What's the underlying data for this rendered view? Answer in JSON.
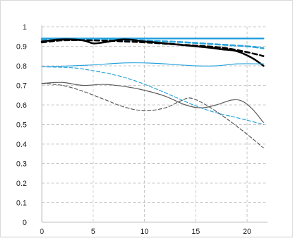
{
  "chart_data": {
    "type": "line",
    "title": "",
    "xlabel": "",
    "ylabel": "",
    "xlim": [
      0,
      22
    ],
    "ylim": [
      0,
      1
    ],
    "x_ticks": [
      0,
      5,
      10,
      15,
      20
    ],
    "y_ticks": [
      0,
      0.1,
      0.2,
      0.3,
      0.4,
      0.5,
      0.6,
      0.7,
      0.8,
      0.9,
      1
    ],
    "grid": "dashed",
    "legend": "none",
    "series": [
      {
        "color": "#29a3dc",
        "style": "solid",
        "weight": "bold",
        "points": [
          [
            0,
            0.94
          ],
          [
            5,
            0.94
          ],
          [
            10,
            0.94
          ],
          [
            15,
            0.94
          ],
          [
            20,
            0.94
          ],
          [
            21.6,
            0.94
          ]
        ]
      },
      {
        "color": "#29a3dc",
        "style": "dashed",
        "weight": "bold",
        "points": [
          [
            0,
            0.935
          ],
          [
            5,
            0.935
          ],
          [
            10,
            0.93
          ],
          [
            14,
            0.92
          ],
          [
            17,
            0.91
          ],
          [
            20,
            0.9
          ],
          [
            21.6,
            0.89
          ]
        ]
      },
      {
        "color": "#000000",
        "style": "solid",
        "weight": "bold",
        "points": [
          [
            0,
            0.925
          ],
          [
            2,
            0.935
          ],
          [
            4,
            0.93
          ],
          [
            5,
            0.915
          ],
          [
            6,
            0.92
          ],
          [
            8,
            0.935
          ],
          [
            10,
            0.925
          ],
          [
            12,
            0.915
          ],
          [
            14,
            0.905
          ],
          [
            16,
            0.895
          ],
          [
            17.5,
            0.885
          ],
          [
            19,
            0.875
          ],
          [
            20.5,
            0.84
          ],
          [
            21.6,
            0.8
          ]
        ]
      },
      {
        "color": "#000000",
        "style": "dashed",
        "weight": "bold",
        "points": [
          [
            0,
            0.92
          ],
          [
            2,
            0.93
          ],
          [
            5,
            0.93
          ],
          [
            8,
            0.925
          ],
          [
            10,
            0.92
          ],
          [
            13,
            0.91
          ],
          [
            16,
            0.9
          ],
          [
            18,
            0.89
          ],
          [
            20,
            0.87
          ],
          [
            21.6,
            0.85
          ]
        ]
      },
      {
        "color": "#29a3dc",
        "style": "solid",
        "weight": "thin",
        "points": [
          [
            0,
            0.795
          ],
          [
            3,
            0.8
          ],
          [
            5,
            0.805
          ],
          [
            8,
            0.815
          ],
          [
            10,
            0.815
          ],
          [
            12,
            0.81
          ],
          [
            15,
            0.8
          ],
          [
            17,
            0.8
          ],
          [
            19,
            0.81
          ],
          [
            21.6,
            0.81
          ]
        ]
      },
      {
        "color": "#29a3dc",
        "style": "dashed",
        "weight": "thin",
        "points": [
          [
            0,
            0.795
          ],
          [
            3,
            0.79
          ],
          [
            5,
            0.775
          ],
          [
            7,
            0.755
          ],
          [
            9,
            0.725
          ],
          [
            11,
            0.685
          ],
          [
            13,
            0.64
          ],
          [
            15,
            0.595
          ],
          [
            17,
            0.56
          ],
          [
            19,
            0.535
          ],
          [
            21.6,
            0.5
          ]
        ]
      },
      {
        "color": "#595959",
        "style": "solid",
        "weight": "thin",
        "points": [
          [
            0,
            0.71
          ],
          [
            2,
            0.715
          ],
          [
            4,
            0.7
          ],
          [
            6,
            0.705
          ],
          [
            8,
            0.695
          ],
          [
            10,
            0.675
          ],
          [
            12,
            0.645
          ],
          [
            14,
            0.6
          ],
          [
            15.5,
            0.585
          ],
          [
            17,
            0.6
          ],
          [
            18.5,
            0.625
          ],
          [
            19.5,
            0.62
          ],
          [
            20.5,
            0.58
          ],
          [
            21.6,
            0.51
          ]
        ]
      },
      {
        "color": "#595959",
        "style": "dashed",
        "weight": "thin",
        "points": [
          [
            0,
            0.71
          ],
          [
            2,
            0.7
          ],
          [
            4,
            0.67
          ],
          [
            6,
            0.63
          ],
          [
            8,
            0.59
          ],
          [
            10,
            0.57
          ],
          [
            12,
            0.585
          ],
          [
            13.5,
            0.62
          ],
          [
            14.5,
            0.635
          ],
          [
            16,
            0.6
          ],
          [
            18,
            0.53
          ],
          [
            20,
            0.45
          ],
          [
            21.6,
            0.38
          ]
        ]
      }
    ]
  }
}
